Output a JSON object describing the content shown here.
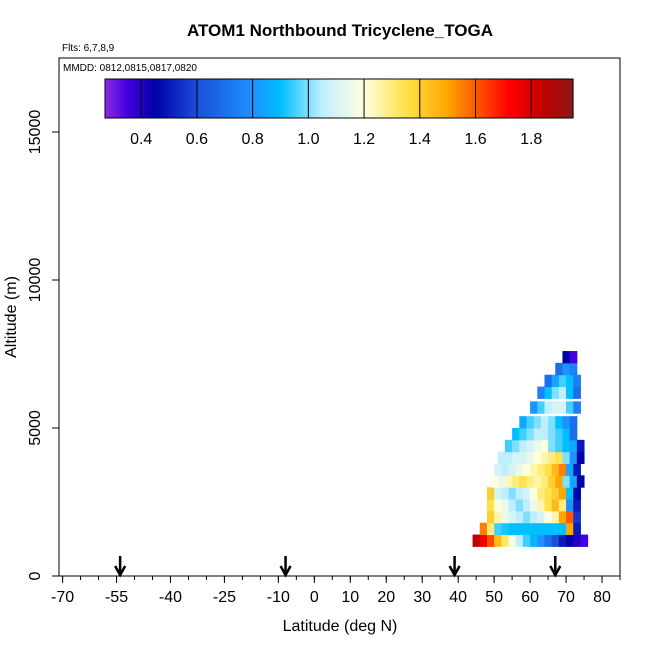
{
  "chart_data": {
    "type": "heatmap",
    "title": "ATOM1 Northbound Tricyclene_TOGA",
    "flights_text": "Flts: 6,7,8,9",
    "dates_text": "MMDD: 0812,0815,0817,0820",
    "xlabel": "Latitude (deg N)",
    "ylabel": "Altitude (m)",
    "xlim": [
      -71,
      85
    ],
    "ylim": [
      0,
      17500
    ],
    "x_ticks": [
      -70,
      -55,
      -40,
      -25,
      -10,
      0,
      10,
      20,
      30,
      40,
      50,
      60,
      70,
      80
    ],
    "x_tick_labels": [
      "-70",
      "-55",
      "-40",
      "-25",
      "-10",
      "0",
      "10",
      "20",
      "30",
      "40",
      "50",
      "60",
      "70",
      "80"
    ],
    "y_ticks": [
      0,
      5000,
      10000,
      15000
    ],
    "y_tick_labels": [
      "0",
      "5000",
      "10000",
      "15000"
    ],
    "grid": false,
    "legend": "colorbar top",
    "colorbar": {
      "range": [
        0.27,
        1.95
      ],
      "tick_values": [
        0.4,
        0.6,
        0.8,
        1.0,
        1.2,
        1.4,
        1.6,
        1.8
      ],
      "tick_labels": [
        "0.4",
        "0.6",
        "0.8",
        "1.0",
        "1.2",
        "1.4",
        "1.6",
        "1.8"
      ],
      "stops": [
        {
          "value": 0.27,
          "color": "#8a2be2"
        },
        {
          "value": 0.35,
          "color": "#4400e0"
        },
        {
          "value": 0.45,
          "color": "#0000a8"
        },
        {
          "value": 0.6,
          "color": "#1a4fd8"
        },
        {
          "value": 0.8,
          "color": "#1e90ff"
        },
        {
          "value": 0.9,
          "color": "#00bfff"
        },
        {
          "value": 1.05,
          "color": "#bfefff"
        },
        {
          "value": 1.2,
          "color": "#ffffe0"
        },
        {
          "value": 1.35,
          "color": "#ffe24a"
        },
        {
          "value": 1.5,
          "color": "#ffa500"
        },
        {
          "value": 1.6,
          "color": "#ff5a00"
        },
        {
          "value": 1.72,
          "color": "#ff0000"
        },
        {
          "value": 1.85,
          "color": "#c00000"
        },
        {
          "value": 1.95,
          "color": "#8b1a1a"
        }
      ]
    },
    "flight_arrow_latitudes": [
      -54,
      -8,
      39,
      67
    ],
    "series": [
      {
        "lat": [
          44,
          46,
          48,
          50,
          52,
          54,
          56,
          58,
          60,
          62,
          64,
          66,
          68,
          70,
          72,
          74
        ],
        "alt": 1000,
        "values": [
          1.85,
          1.75,
          1.62,
          1.45,
          1.32,
          1.18,
          1.05,
          0.95,
          0.88,
          0.8,
          0.7,
          0.6,
          0.5,
          0.45,
          0.4,
          0.35
        ]
      },
      {
        "lat": [
          46,
          48,
          50,
          52,
          54,
          56,
          58,
          60,
          62,
          64,
          66,
          68,
          70,
          72
        ],
        "alt": 1400,
        "values": [
          1.55,
          1.3,
          0.95,
          0.92,
          0.9,
          0.9,
          0.9,
          0.9,
          0.9,
          0.9,
          0.9,
          0.9,
          1.5,
          0.5
        ]
      },
      {
        "lat": [
          48,
          50,
          52,
          54,
          56,
          58,
          60,
          62,
          64,
          66,
          68,
          70,
          72
        ],
        "alt": 1800,
        "values": [
          1.4,
          1.25,
          1.15,
          1.1,
          1.05,
          1.0,
          1.05,
          1.1,
          1.2,
          1.25,
          1.5,
          1.6,
          0.55
        ]
      },
      {
        "lat": [
          48,
          50,
          52,
          54,
          56,
          58,
          60,
          62,
          64,
          66,
          68,
          70,
          72
        ],
        "alt": 2200,
        "values": [
          1.35,
          1.2,
          1.15,
          1.05,
          1.0,
          1.05,
          1.15,
          1.25,
          1.35,
          1.45,
          1.3,
          0.8,
          0.5
        ]
      },
      {
        "lat": [
          48,
          50,
          52,
          54,
          56,
          58,
          60,
          62,
          64,
          66,
          68,
          70,
          72
        ],
        "alt": 2600,
        "values": [
          1.4,
          1.1,
          1.05,
          1.0,
          1.05,
          1.1,
          1.2,
          1.3,
          1.35,
          1.4,
          1.5,
          0.9,
          0.45
        ]
      },
      {
        "lat": [
          49,
          51,
          53,
          55,
          57,
          59,
          61,
          63,
          65,
          67,
          69,
          71,
          73
        ],
        "alt": 3000,
        "values": [
          1.2,
          1.15,
          1.25,
          1.3,
          1.35,
          1.3,
          1.25,
          1.3,
          1.4,
          1.5,
          1.0,
          0.85,
          0.45
        ]
      },
      {
        "lat": [
          50,
          52,
          54,
          56,
          58,
          60,
          62,
          64,
          66,
          68,
          70,
          72
        ],
        "alt": 3400,
        "values": [
          1.1,
          1.05,
          1.1,
          1.15,
          1.2,
          1.25,
          1.3,
          1.35,
          1.45,
          1.55,
          0.85,
          0.5
        ]
      },
      {
        "lat": [
          51,
          53,
          55,
          57,
          59,
          61,
          63,
          65,
          67,
          69,
          71,
          73
        ],
        "alt": 3800,
        "values": [
          1.05,
          1.05,
          1.1,
          1.1,
          1.15,
          1.2,
          1.25,
          1.3,
          1.35,
          1.0,
          0.8,
          0.45
        ]
      },
      {
        "lat": [
          53,
          55,
          57,
          59,
          61,
          63,
          65,
          67,
          69,
          71,
          73
        ],
        "alt": 4200,
        "values": [
          0.95,
          1.0,
          1.05,
          1.1,
          1.15,
          1.2,
          1.0,
          0.95,
          0.9,
          0.85,
          0.5
        ]
      },
      {
        "lat": [
          55,
          57,
          59,
          61,
          63,
          65,
          67,
          69,
          71
        ],
        "alt": 4600,
        "values": [
          0.9,
          0.95,
          1.0,
          1.05,
          1.05,
          1.0,
          0.95,
          0.9,
          0.7
        ]
      },
      {
        "lat": [
          57,
          59,
          61,
          63,
          65,
          67,
          69,
          71
        ],
        "alt": 5000,
        "values": [
          0.85,
          0.95,
          1.0,
          1.05,
          1.0,
          0.9,
          0.8,
          0.7
        ]
      },
      {
        "lat": [
          60,
          62,
          64,
          66,
          68,
          70,
          72
        ],
        "alt": 5500,
        "values": [
          0.8,
          0.95,
          1.05,
          1.1,
          1.1,
          0.95,
          0.75
        ]
      },
      {
        "lat": [
          62,
          64,
          66,
          68,
          70,
          72
        ],
        "alt": 6000,
        "values": [
          0.75,
          0.9,
          1.0,
          1.05,
          0.9,
          0.7
        ]
      },
      {
        "lat": [
          64,
          66,
          68,
          70,
          72
        ],
        "alt": 6400,
        "values": [
          0.7,
          0.85,
          0.95,
          0.9,
          0.75
        ]
      },
      {
        "lat": [
          67,
          69,
          71
        ],
        "alt": 6800,
        "values": [
          0.7,
          0.8,
          0.75
        ]
      },
      {
        "lat": [
          69,
          71
        ],
        "alt": 7200,
        "values": [
          0.45,
          0.35
        ]
      }
    ]
  }
}
